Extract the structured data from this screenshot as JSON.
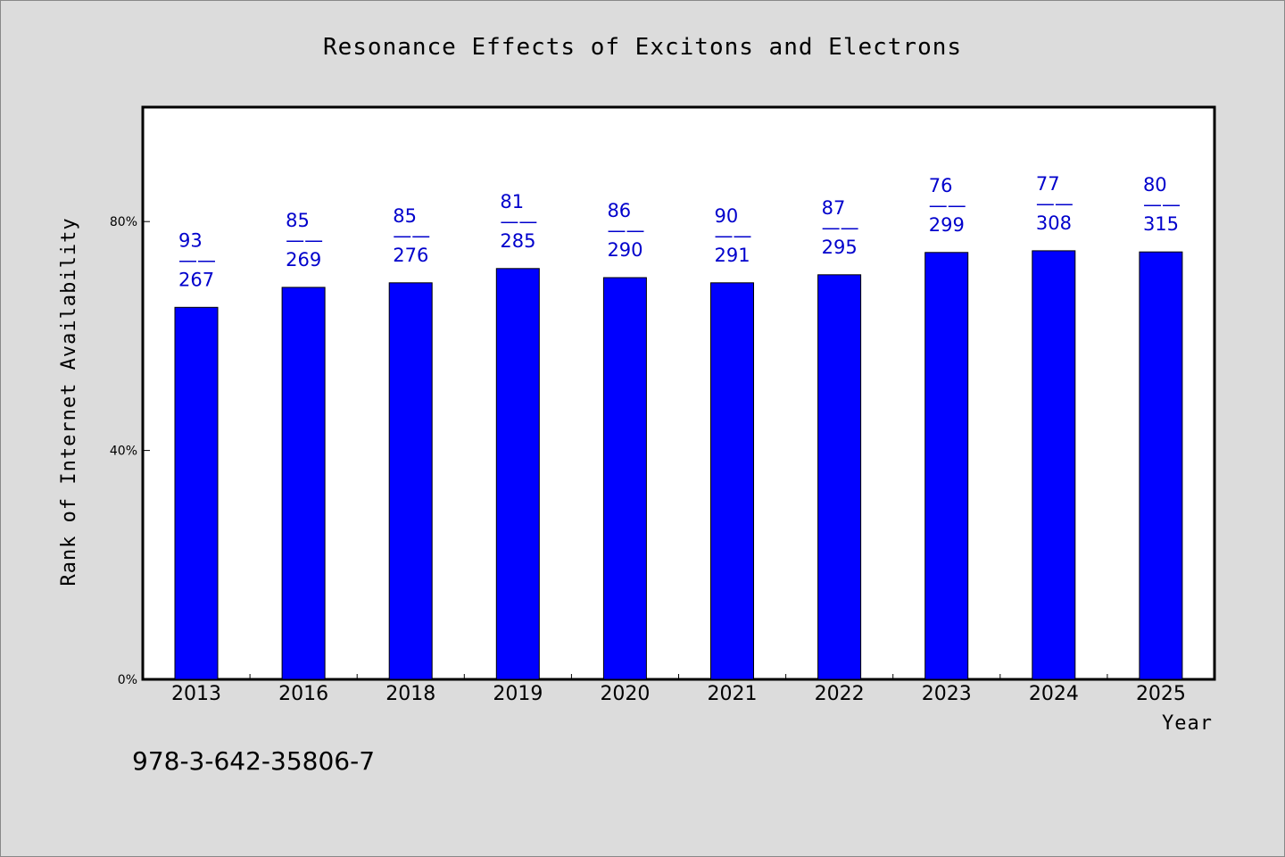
{
  "chart_data": {
    "type": "bar",
    "title": "Resonance Effects of Excitons and Electrons",
    "xlabel": "Year",
    "ylabel": "Rank of Internet Availability",
    "categories": [
      "2013",
      "2016",
      "2018",
      "2019",
      "2020",
      "2021",
      "2022",
      "2023",
      "2024",
      "2025"
    ],
    "values": [
      65.0,
      68.5,
      69.3,
      71.8,
      70.2,
      69.3,
      70.7,
      74.6,
      74.9,
      74.7
    ],
    "value_unit": "%",
    "label_numerators": [
      "93",
      "85",
      "85",
      "81",
      "86",
      "90",
      "87",
      "76",
      "77",
      "80"
    ],
    "label_separator": "——",
    "label_denominators": [
      "267",
      "269",
      "276",
      "285",
      "290",
      "291",
      "295",
      "299",
      "308",
      "315"
    ],
    "ylim": [
      0,
      100
    ],
    "yticks": [
      0,
      40,
      80
    ],
    "ytick_labels": [
      "0%",
      "40%",
      "80%"
    ],
    "grid": false,
    "legend": false,
    "bar_color": "#0000ff",
    "label_color": "#0000cc",
    "plot_background": "#ffffff",
    "page_background": "#dcdcdc"
  },
  "footnote": "978-3-642-35806-7"
}
